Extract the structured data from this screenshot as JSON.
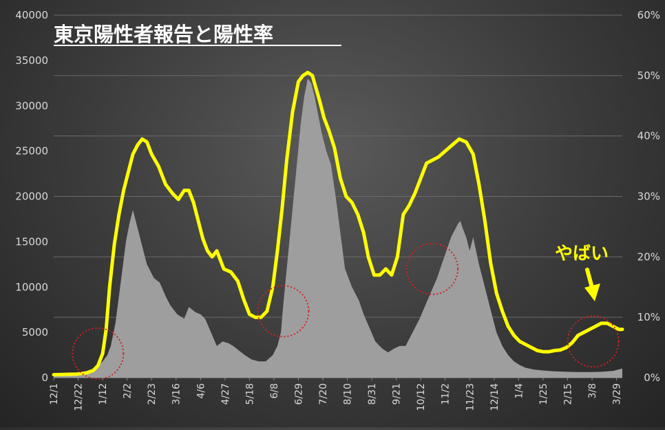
{
  "chart_data": {
    "type": "area",
    "title": "東京陽性者報告と陽性率",
    "annotation": "やばい",
    "colors": {
      "area": "#9e9e9e",
      "line": "#ffff00",
      "circles": "#d42020"
    },
    "y_left": {
      "ylim": [
        0,
        40000
      ],
      "ticks": [
        "0",
        "5000",
        "10000",
        "15000",
        "20000",
        "25000",
        "30000",
        "35000",
        "40000"
      ]
    },
    "y_right": {
      "ylim": [
        0,
        0.6
      ],
      "ticks": [
        "0%",
        "10%",
        "20%",
        "30%",
        "40%",
        "50%",
        "60%"
      ]
    },
    "x_ticks": [
      "12/1",
      "12/22",
      "1/12",
      "2/2",
      "2/23",
      "3/16",
      "4/6",
      "4/27",
      "5/18",
      "6/8",
      "6/29",
      "7/20",
      "8/10",
      "8/31",
      "9/21",
      "10/12",
      "11/2",
      "11/23",
      "12/14",
      "1/4",
      "1/25",
      "2/15",
      "3/8",
      "3/29"
    ],
    "grid": true,
    "series": [
      {
        "kind": "area",
        "axis": "left",
        "x": [
          0,
          20,
          28,
          36,
          42,
          46,
          49,
          53,
          56,
          59,
          62,
          65,
          68,
          72,
          76,
          80,
          86,
          91,
          96,
          100,
          106,
          112,
          116,
          119,
          122,
          126,
          130,
          135,
          140,
          145,
          150,
          154,
          159,
          164,
          170,
          176,
          182,
          188,
          192,
          195,
          197,
          200,
          203,
          206,
          209,
          212,
          215,
          218,
          221,
          224,
          227,
          230,
          234,
          238,
          242,
          246,
          250,
          256,
          262,
          266,
          271,
          276,
          282,
          287,
          292,
          297,
          302,
          306,
          310,
          314,
          319,
          324,
          329,
          333,
          337,
          341,
          345,
          347,
          349,
          351,
          354,
          357,
          360,
          365,
          370,
          375,
          380,
          385,
          390,
          395,
          400,
          405,
          412,
          420,
          430,
          440,
          450,
          460,
          470,
          480,
          488
        ],
        "values": [
          200,
          300,
          500,
          1000,
          1800,
          2500,
          3500,
          6000,
          9000,
          12000,
          15000,
          17000,
          18500,
          16500,
          14500,
          12500,
          11000,
          10500,
          9000,
          8000,
          7000,
          6500,
          7800,
          7500,
          7200,
          7000,
          6500,
          5000,
          3500,
          4000,
          3800,
          3500,
          3000,
          2500,
          2000,
          1800,
          1800,
          2500,
          3500,
          5000,
          8000,
          12000,
          16000,
          20000,
          24000,
          28000,
          31000,
          33000,
          32500,
          31000,
          29000,
          27000,
          25000,
          23500,
          20000,
          16000,
          12000,
          10000,
          8500,
          7000,
          5500,
          4000,
          3200,
          2800,
          3200,
          3500,
          3500,
          4500,
          5500,
          6500,
          8000,
          9500,
          11000,
          12500,
          14000,
          15500,
          16500,
          17000,
          17300,
          16500,
          15500,
          14000,
          15500,
          12500,
          10000,
          7500,
          5000,
          3500,
          2500,
          1800,
          1400,
          1100,
          900,
          800,
          700,
          650,
          620,
          620,
          650,
          750,
          1000
        ]
      },
      {
        "kind": "line",
        "axis": "right",
        "x": [
          0,
          20,
          28,
          34,
          38,
          42,
          45,
          48,
          52,
          56,
          60,
          64,
          68,
          72,
          76,
          80,
          84,
          90,
          96,
          102,
          107,
          112,
          116,
          120,
          124,
          128,
          132,
          136,
          140,
          146,
          152,
          158,
          163,
          168,
          173,
          178,
          183,
          188,
          192,
          196,
          200,
          205,
          210,
          214,
          218,
          222,
          225,
          228,
          232,
          236,
          241,
          246,
          251,
          256,
          261,
          266,
          270,
          275,
          280,
          285,
          290,
          295,
          300,
          305,
          310,
          315,
          320,
          325,
          330,
          336,
          342,
          348,
          354,
          360,
          365,
          370,
          375,
          380,
          385,
          390,
          395,
          400,
          405,
          410,
          415,
          420,
          425,
          430,
          435,
          440,
          445,
          450,
          455,
          460,
          465,
          470,
          475,
          480,
          485,
          488
        ],
        "values": [
          0.005,
          0.006,
          0.008,
          0.012,
          0.02,
          0.04,
          0.08,
          0.15,
          0.22,
          0.27,
          0.31,
          0.34,
          0.37,
          0.385,
          0.395,
          0.39,
          0.37,
          0.35,
          0.32,
          0.305,
          0.295,
          0.31,
          0.31,
          0.29,
          0.26,
          0.23,
          0.21,
          0.2,
          0.21,
          0.18,
          0.175,
          0.16,
          0.13,
          0.105,
          0.1,
          0.1,
          0.11,
          0.15,
          0.21,
          0.28,
          0.36,
          0.44,
          0.49,
          0.5,
          0.505,
          0.5,
          0.48,
          0.46,
          0.43,
          0.41,
          0.38,
          0.33,
          0.3,
          0.29,
          0.27,
          0.24,
          0.2,
          0.17,
          0.17,
          0.18,
          0.17,
          0.2,
          0.27,
          0.285,
          0.305,
          0.33,
          0.355,
          0.36,
          0.365,
          0.375,
          0.385,
          0.395,
          0.39,
          0.37,
          0.32,
          0.26,
          0.19,
          0.14,
          0.11,
          0.085,
          0.07,
          0.06,
          0.055,
          0.05,
          0.045,
          0.043,
          0.043,
          0.045,
          0.046,
          0.05,
          0.058,
          0.07,
          0.075,
          0.08,
          0.085,
          0.09,
          0.09,
          0.085,
          0.08,
          0.08
        ]
      }
    ],
    "circle_centers": [
      {
        "x": 38,
        "y_right": 0.04
      },
      {
        "x": 197,
        "y_right": 0.11
      },
      {
        "x": 325,
        "y_right": 0.18
      },
      {
        "x": 463,
        "y_right": 0.06
      }
    ]
  }
}
